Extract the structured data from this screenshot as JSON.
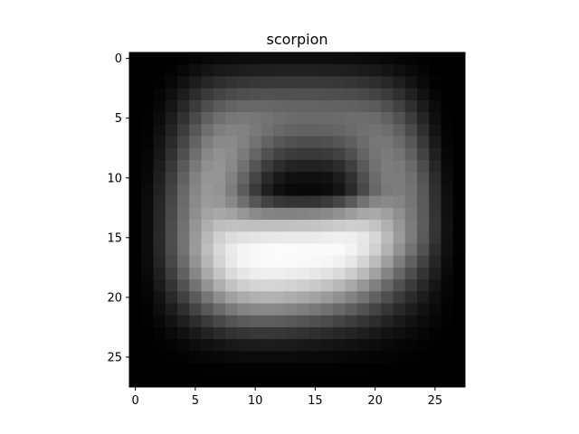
{
  "chart_data": {
    "type": "heatmap",
    "title": "scorpion",
    "xlabel": "",
    "ylabel": "",
    "colormap": "gray",
    "grid": false,
    "legend": "none",
    "x_range": [
      -0.5,
      27.5
    ],
    "y_range": [
      -0.5,
      27.5
    ],
    "y_inverted": true,
    "x_ticks": [
      0,
      5,
      10,
      15,
      20,
      25
    ],
    "y_ticks": [
      0,
      5,
      10,
      15,
      20,
      25
    ],
    "x_tick_labels": [
      "0",
      "5",
      "10",
      "15",
      "20",
      "25"
    ],
    "y_tick_labels": [
      "0",
      "5",
      "10",
      "15",
      "20",
      "25"
    ],
    "value_range": [
      0,
      255
    ],
    "rows": 28,
    "cols": 28,
    "values": [
      [
        0,
        0,
        0,
        0,
        2,
        5,
        8,
        10,
        11,
        12,
        13,
        13,
        14,
        14,
        14,
        14,
        13,
        13,
        12,
        11,
        10,
        8,
        6,
        4,
        2,
        0,
        0,
        0
      ],
      [
        0,
        0,
        0,
        3,
        8,
        14,
        20,
        24,
        27,
        29,
        30,
        31,
        32,
        32,
        32,
        32,
        31,
        30,
        29,
        27,
        24,
        20,
        15,
        10,
        5,
        1,
        0,
        0
      ],
      [
        0,
        0,
        2,
        8,
        17,
        28,
        38,
        45,
        50,
        53,
        55,
        56,
        57,
        57,
        57,
        57,
        56,
        55,
        53,
        50,
        45,
        39,
        30,
        20,
        10,
        3,
        0,
        0
      ],
      [
        0,
        0,
        5,
        14,
        28,
        44,
        58,
        68,
        74,
        78,
        80,
        81,
        81,
        81,
        80,
        80,
        79,
        78,
        76,
        73,
        67,
        59,
        47,
        33,
        18,
        6,
        0,
        0
      ],
      [
        0,
        1,
        8,
        21,
        39,
        59,
        78,
        91,
        99,
        103,
        104,
        103,
        101,
        100,
        99,
        99,
        98,
        98,
        97,
        95,
        90,
        80,
        65,
        47,
        27,
        10,
        1,
        0
      ],
      [
        0,
        2,
        11,
        28,
        50,
        74,
        96,
        111,
        119,
        121,
        119,
        115,
        111,
        108,
        106,
        106,
        106,
        107,
        109,
        110,
        107,
        98,
        82,
        61,
        37,
        15,
        2,
        0
      ],
      [
        0,
        3,
        15,
        35,
        60,
        87,
        111,
        126,
        131,
        129,
        121,
        112,
        104,
        99,
        97,
        97,
        98,
        101,
        106,
        112,
        115,
        110,
        96,
        74,
        47,
        20,
        3,
        0
      ],
      [
        0,
        4,
        19,
        42,
        70,
        99,
        124,
        137,
        138,
        129,
        114,
        99,
        87,
        81,
        78,
        78,
        80,
        85,
        95,
        108,
        118,
        118,
        107,
        86,
        57,
        26,
        5,
        0
      ],
      [
        0,
        6,
        23,
        49,
        80,
        111,
        135,
        145,
        139,
        123,
        101,
        81,
        67,
        59,
        56,
        56,
        58,
        66,
        80,
        100,
        117,
        123,
        116,
        97,
        67,
        32,
        7,
        0
      ],
      [
        0,
        7,
        27,
        56,
        89,
        121,
        143,
        148,
        136,
        113,
        85,
        60,
        44,
        36,
        33,
        33,
        36,
        45,
        63,
        89,
        113,
        125,
        122,
        106,
        76,
        38,
        9,
        0
      ],
      [
        1,
        8,
        31,
        62,
        97,
        129,
        149,
        148,
        130,
        101,
        69,
        42,
        25,
        17,
        15,
        15,
        18,
        28,
        49,
        79,
        107,
        124,
        124,
        112,
        83,
        43,
        11,
        1
      ],
      [
        1,
        10,
        34,
        67,
        103,
        134,
        152,
        147,
        125,
        92,
        58,
        31,
        16,
        9,
        8,
        8,
        11,
        21,
        42,
        73,
        103,
        122,
        125,
        115,
        88,
        47,
        13,
        1
      ],
      [
        1,
        11,
        37,
        71,
        107,
        138,
        155,
        152,
        136,
        111,
        86,
        66,
        55,
        51,
        51,
        52,
        58,
        70,
        90,
        114,
        132,
        137,
        132,
        117,
        90,
        50,
        15,
        1
      ],
      [
        1,
        12,
        39,
        74,
        110,
        142,
        163,
        168,
        162,
        150,
        139,
        132,
        130,
        130,
        131,
        133,
        138,
        146,
        157,
        167,
        169,
        160,
        143,
        121,
        91,
        52,
        16,
        2
      ],
      [
        1,
        12,
        40,
        76,
        113,
        148,
        174,
        189,
        193,
        192,
        191,
        191,
        192,
        193,
        194,
        196,
        199,
        203,
        206,
        205,
        195,
        176,
        151,
        124,
        92,
        53,
        17,
        2
      ],
      [
        1,
        12,
        41,
        77,
        115,
        153,
        184,
        207,
        220,
        226,
        229,
        232,
        233,
        234,
        234,
        235,
        237,
        239,
        238,
        231,
        214,
        187,
        155,
        124,
        90,
        52,
        17,
        2
      ],
      [
        1,
        12,
        40,
        76,
        114,
        154,
        189,
        216,
        234,
        244,
        248,
        250,
        251,
        251,
        250,
        250,
        250,
        249,
        243,
        230,
        208,
        178,
        145,
        114,
        81,
        46,
        15,
        2
      ],
      [
        1,
        11,
        37,
        71,
        108,
        147,
        183,
        212,
        232,
        244,
        249,
        251,
        251,
        250,
        249,
        248,
        246,
        241,
        231,
        213,
        188,
        158,
        126,
        96,
        67,
        38,
        12,
        1
      ],
      [
        0,
        9,
        32,
        63,
        97,
        134,
        169,
        197,
        218,
        230,
        236,
        238,
        238,
        236,
        234,
        231,
        226,
        218,
        205,
        186,
        161,
        132,
        103,
        77,
        52,
        29,
        9,
        1
      ],
      [
        0,
        7,
        26,
        52,
        82,
        115,
        147,
        174,
        194,
        206,
        212,
        214,
        213,
        210,
        206,
        201,
        194,
        184,
        169,
        150,
        128,
        104,
        80,
        59,
        39,
        21,
        7,
        0
      ],
      [
        0,
        5,
        19,
        40,
        64,
        91,
        118,
        142,
        160,
        171,
        177,
        179,
        177,
        173,
        168,
        162,
        154,
        144,
        131,
        115,
        97,
        78,
        59,
        43,
        28,
        15,
        5,
        0
      ],
      [
        0,
        3,
        13,
        28,
        46,
        67,
        88,
        107,
        122,
        131,
        136,
        137,
        135,
        131,
        126,
        120,
        113,
        104,
        94,
        82,
        68,
        54,
        41,
        29,
        18,
        10,
        3,
        0
      ],
      [
        0,
        2,
        8,
        18,
        30,
        44,
        58,
        72,
        83,
        90,
        94,
        94,
        93,
        89,
        85,
        80,
        75,
        68,
        61,
        53,
        44,
        35,
        26,
        18,
        11,
        6,
        2,
        0
      ],
      [
        0,
        1,
        4,
        10,
        17,
        25,
        34,
        42,
        49,
        53,
        56,
        56,
        55,
        53,
        50,
        47,
        43,
        39,
        35,
        30,
        25,
        19,
        14,
        10,
        6,
        3,
        1,
        0
      ],
      [
        0,
        0,
        2,
        4,
        8,
        12,
        16,
        20,
        24,
        26,
        27,
        28,
        27,
        26,
        24,
        23,
        21,
        19,
        17,
        14,
        12,
        9,
        7,
        5,
        3,
        1,
        0,
        0
      ],
      [
        0,
        0,
        1,
        2,
        3,
        5,
        7,
        8,
        10,
        11,
        11,
        11,
        11,
        11,
        10,
        9,
        9,
        8,
        7,
        6,
        5,
        4,
        3,
        2,
        1,
        0,
        0,
        0
      ],
      [
        0,
        0,
        0,
        1,
        1,
        1,
        2,
        2,
        3,
        3,
        3,
        3,
        3,
        3,
        3,
        3,
        3,
        2,
        2,
        2,
        1,
        1,
        1,
        1,
        0,
        0,
        0,
        0
      ],
      [
        0,
        0,
        0,
        0,
        0,
        0,
        0,
        0,
        0,
        0,
        0,
        0,
        0,
        0,
        0,
        0,
        0,
        0,
        0,
        0,
        0,
        0,
        0,
        0,
        0,
        0,
        0,
        0
      ]
    ]
  }
}
